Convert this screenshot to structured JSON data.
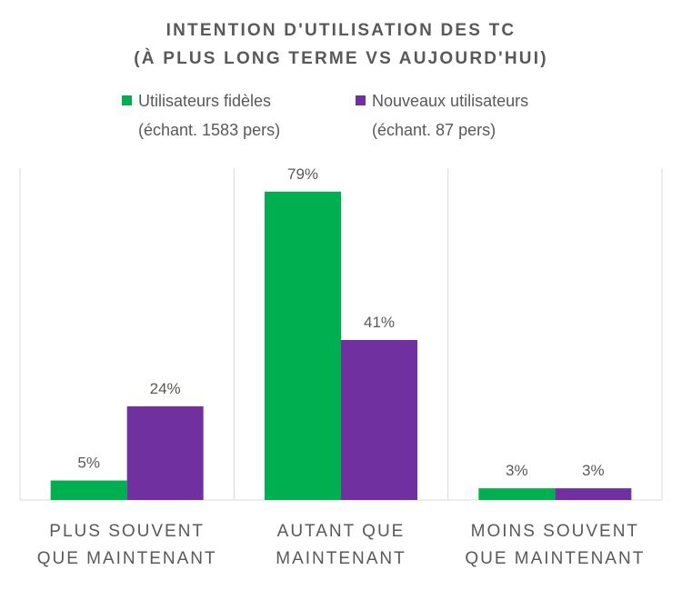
{
  "chart_data": {
    "type": "bar",
    "title_lines": [
      "INTENTION D'UTILISATION DES TC",
      "(À PLUS LONG TERME VS AUJOURD'HUI)"
    ],
    "categories": [
      [
        "PLUS SOUVENT",
        "QUE MAINTENANT"
      ],
      [
        "AUTANT QUE",
        "MAINTENANT"
      ],
      [
        "MOINS SOUVENT",
        "QUE MAINTENANT"
      ]
    ],
    "series": [
      {
        "name": "Utilisateurs fidèles",
        "name_sub": "(échant. 1583 pers)",
        "color": "#00B050",
        "values": [
          5,
          79,
          3
        ],
        "labels": [
          "5%",
          "79%",
          "3%"
        ]
      },
      {
        "name": "Nouveaux utilisateurs",
        "name_sub": "(échant. 87 pers)",
        "color": "#7030A0",
        "values": [
          24,
          41,
          3
        ],
        "labels": [
          "24%",
          "41%",
          "3%"
        ]
      }
    ],
    "value_unit": "%",
    "ylim": [
      0,
      85
    ],
    "grid": "vertical category separators",
    "legend_position": "top"
  }
}
